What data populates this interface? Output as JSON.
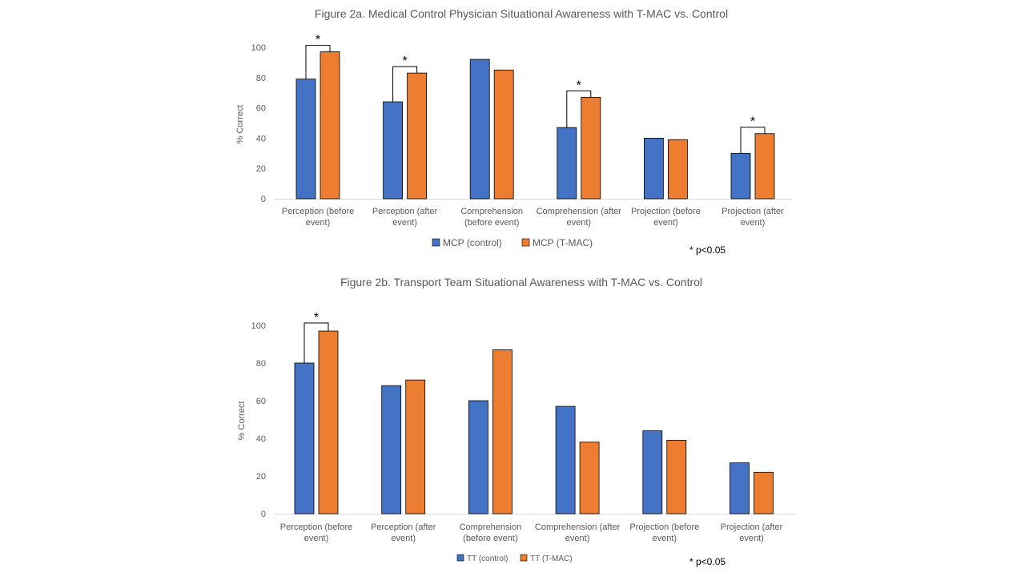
{
  "colors": {
    "control": "#4472C4",
    "tmac": "#ED7D31",
    "axis": "#D9D9D9",
    "text": "#595959",
    "bracket": "#000000"
  },
  "chart_data": [
    {
      "type": "bar",
      "title": "Figure 2a. Medical Control Physician Situational Awareness with T-MAC vs. Control",
      "ylabel": "% Correct",
      "xlabel": "",
      "ylim": [
        0,
        100
      ],
      "yticks": [
        0,
        20,
        40,
        60,
        80,
        100
      ],
      "categories": [
        [
          "Perception (before",
          "event)"
        ],
        [
          "Perception (after",
          "event)"
        ],
        [
          "Comprehension",
          "(before event)"
        ],
        [
          "Comprehension (after",
          "event)"
        ],
        [
          "Projection (before",
          "event)"
        ],
        [
          "Projection (after",
          "event)"
        ]
      ],
      "series": [
        {
          "name": "MCP (control)",
          "values": [
            79,
            64,
            92,
            47,
            40,
            30
          ]
        },
        {
          "name": "MCP (T-MAC)",
          "values": [
            97,
            83,
            85,
            67,
            39,
            43
          ]
        }
      ],
      "significant": [
        true,
        true,
        false,
        true,
        false,
        true
      ],
      "sig_marker": "*",
      "legend": "bottom",
      "note": "* p<0.05",
      "grid": false
    },
    {
      "type": "bar",
      "title": "Figure 2b. Transport Team Situational Awareness with T-MAC vs. Control",
      "ylabel": "% Correct",
      "xlabel": "",
      "ylim": [
        0,
        100
      ],
      "yticks": [
        0,
        20,
        40,
        60,
        80,
        100
      ],
      "categories": [
        [
          "Perception (before",
          "event)"
        ],
        [
          "Perception (after",
          "event)"
        ],
        [
          "Comprehension",
          "(before event)"
        ],
        [
          "Comprehension (after",
          "event)"
        ],
        [
          "Projection (before",
          "event)"
        ],
        [
          "Projection (after",
          "event)"
        ]
      ],
      "series": [
        {
          "name": "TT (control)",
          "values": [
            80,
            68,
            60,
            57,
            44,
            27
          ]
        },
        {
          "name": "TT (T-MAC)",
          "values": [
            97,
            71,
            87,
            38,
            39,
            22
          ]
        }
      ],
      "significant": [
        true,
        false,
        false,
        false,
        false,
        false
      ],
      "sig_marker": "*",
      "legend": "bottom",
      "note": "* p<0.05",
      "grid": false
    }
  ]
}
